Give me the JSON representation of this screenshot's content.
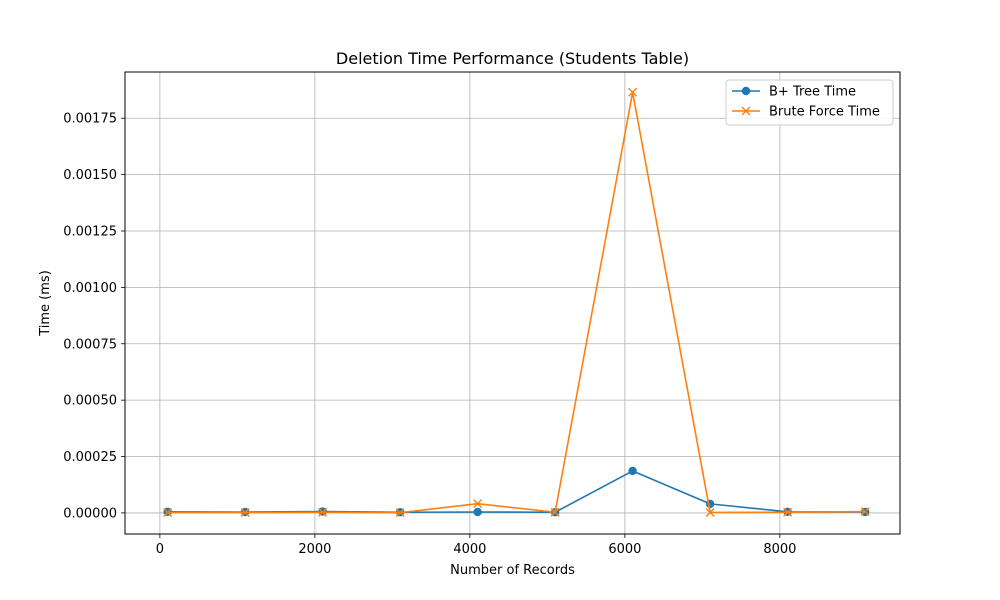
{
  "chart_data": {
    "type": "line",
    "title": "Deletion Time Performance (Students Table)",
    "xlabel": "Number of Records",
    "ylabel": "Time (ms)",
    "xlim": [
      -450,
      9550
    ],
    "ylim": [
      -9.35e-05,
      0.001955
    ],
    "x_ticks": [
      0,
      2000,
      4000,
      6000,
      8000
    ],
    "x_tick_labels": [
      "0",
      "2000",
      "4000",
      "6000",
      "8000"
    ],
    "y_ticks": [
      0,
      0.00025,
      0.0005,
      0.00075,
      0.001,
      0.00125,
      0.0015,
      0.00175
    ],
    "y_tick_labels": [
      "0.00000",
      "0.00025",
      "0.00050",
      "0.00075",
      "0.00100",
      "0.00125",
      "0.00150",
      "0.00175"
    ],
    "grid": true,
    "legend_position": "top-right",
    "x": [
      100,
      1100,
      2100,
      3100,
      4100,
      5100,
      6100,
      7100,
      8100,
      9100
    ],
    "series": [
      {
        "name": "B+ Tree Time",
        "color": "#1f77b4",
        "marker": "circle",
        "values": [
          5e-06,
          4e-06,
          6e-06,
          3e-06,
          4e-06,
          3e-06,
          0.000186,
          4e-05,
          5e-06,
          4e-06
        ]
      },
      {
        "name": "Brute Force Time",
        "color": "#ff7f0e",
        "marker": "x",
        "values": [
          2e-06,
          2e-06,
          3e-06,
          1e-06,
          4.1e-05,
          3e-06,
          0.001865,
          2e-06,
          3e-06,
          6e-06
        ]
      }
    ]
  }
}
